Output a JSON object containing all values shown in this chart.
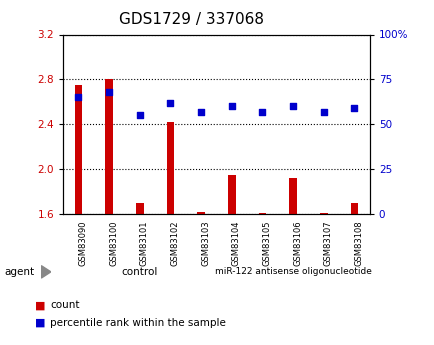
{
  "title": "GDS1729 / 337068",
  "samples": [
    "GSM83090",
    "GSM83100",
    "GSM83101",
    "GSM83102",
    "GSM83103",
    "GSM83104",
    "GSM83105",
    "GSM83106",
    "GSM83107",
    "GSM83108"
  ],
  "red_values": [
    2.75,
    2.8,
    1.7,
    2.42,
    1.62,
    1.95,
    1.61,
    1.92,
    1.61,
    1.7
  ],
  "blue_values": [
    65,
    68,
    55,
    62,
    57,
    60,
    57,
    60,
    57,
    59
  ],
  "ylim_left": [
    1.6,
    3.2
  ],
  "ylim_right": [
    0,
    100
  ],
  "yticks_left": [
    1.6,
    2.0,
    2.4,
    2.8,
    3.2
  ],
  "yticks_right": [
    0,
    25,
    50,
    75,
    100
  ],
  "control_label": "control",
  "mir_label": "miR-122 antisense oligonucleotide",
  "agent_label": "agent",
  "group_color": "#c8f0c8",
  "legend_count_color": "#cc0000",
  "legend_pct_color": "#0000cc",
  "bar_color": "#cc0000",
  "dot_color": "#0000cc",
  "bar_width": 0.25,
  "plot_bg_color": "#ffffff",
  "xticklabel_bg": "#d8d8d8",
  "tick_label_color_left": "#cc0000",
  "tick_label_color_right": "#0000cc",
  "title_fontsize": 11,
  "axis_fontsize": 7.5,
  "legend_fontsize": 7.5,
  "control_count": 5,
  "total_count": 10
}
